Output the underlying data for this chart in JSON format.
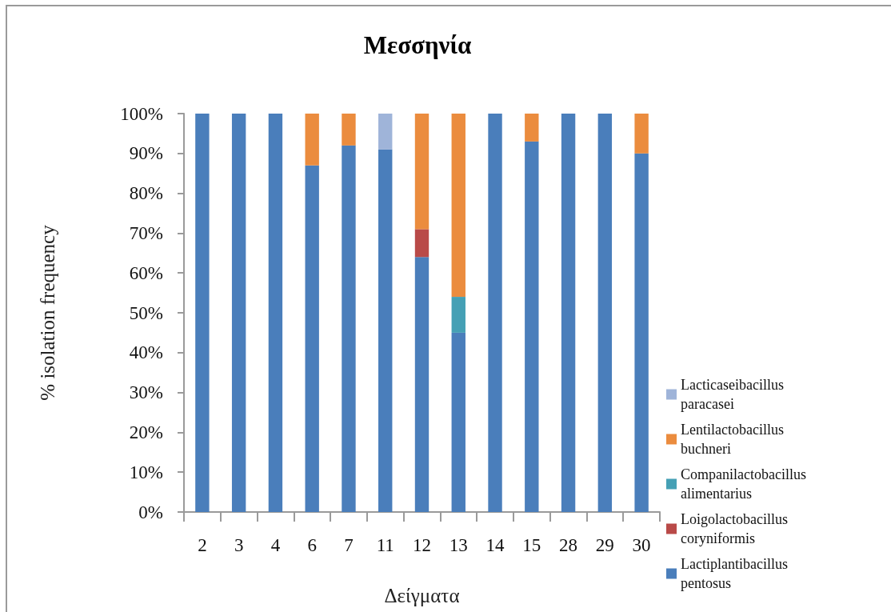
{
  "chart_data": {
    "type": "bar",
    "stacked": true,
    "title": "Μεσσηνία",
    "xlabel": "Δείγματα",
    "ylabel": "% isolation frequency",
    "categories": [
      "2",
      "3",
      "4",
      "6",
      "7",
      "11",
      "12",
      "13",
      "14",
      "15",
      "28",
      "29",
      "30"
    ],
    "series": [
      {
        "name": "Lactiplantibacillus pentosus",
        "color": "#4a7ebb",
        "values": [
          100,
          100,
          100,
          87,
          92,
          91,
          64,
          45,
          100,
          93,
          100,
          100,
          90
        ]
      },
      {
        "name": "Loigolactobacillus coryniformis",
        "color": "#b94a48",
        "values": [
          0,
          0,
          0,
          0,
          0,
          0,
          7,
          0,
          0,
          0,
          0,
          0,
          0
        ]
      },
      {
        "name": "Companilactobacillus alimentarius",
        "color": "#45a0b5",
        "values": [
          0,
          0,
          0,
          0,
          0,
          0,
          0,
          9,
          0,
          0,
          0,
          0,
          0
        ]
      },
      {
        "name": "Lentilactobacillus buchneri",
        "color": "#eb8c3e",
        "values": [
          0,
          0,
          0,
          13,
          8,
          0,
          29,
          46,
          0,
          7,
          0,
          0,
          10
        ]
      },
      {
        "name": "Lacticaseibacillus paracasei",
        "color": "#9fb4d9",
        "values": [
          0,
          0,
          0,
          0,
          0,
          9,
          0,
          0,
          0,
          0,
          0,
          0,
          0
        ]
      }
    ],
    "ylim": [
      0,
      100
    ],
    "yticks": [
      {
        "value": 0,
        "label": "0%"
      },
      {
        "value": 10,
        "label": "10%"
      },
      {
        "value": 20,
        "label": "20%"
      },
      {
        "value": 30,
        "label": "30%"
      },
      {
        "value": 40,
        "label": "40%"
      },
      {
        "value": 50,
        "label": "50%"
      },
      {
        "value": 60,
        "label": "60%"
      },
      {
        "value": 70,
        "label": "70%"
      },
      {
        "value": 80,
        "label": "80%"
      },
      {
        "value": 90,
        "label": "90%"
      },
      {
        "value": 100,
        "label": "100%"
      }
    ],
    "grid": false,
    "legend": "right"
  }
}
